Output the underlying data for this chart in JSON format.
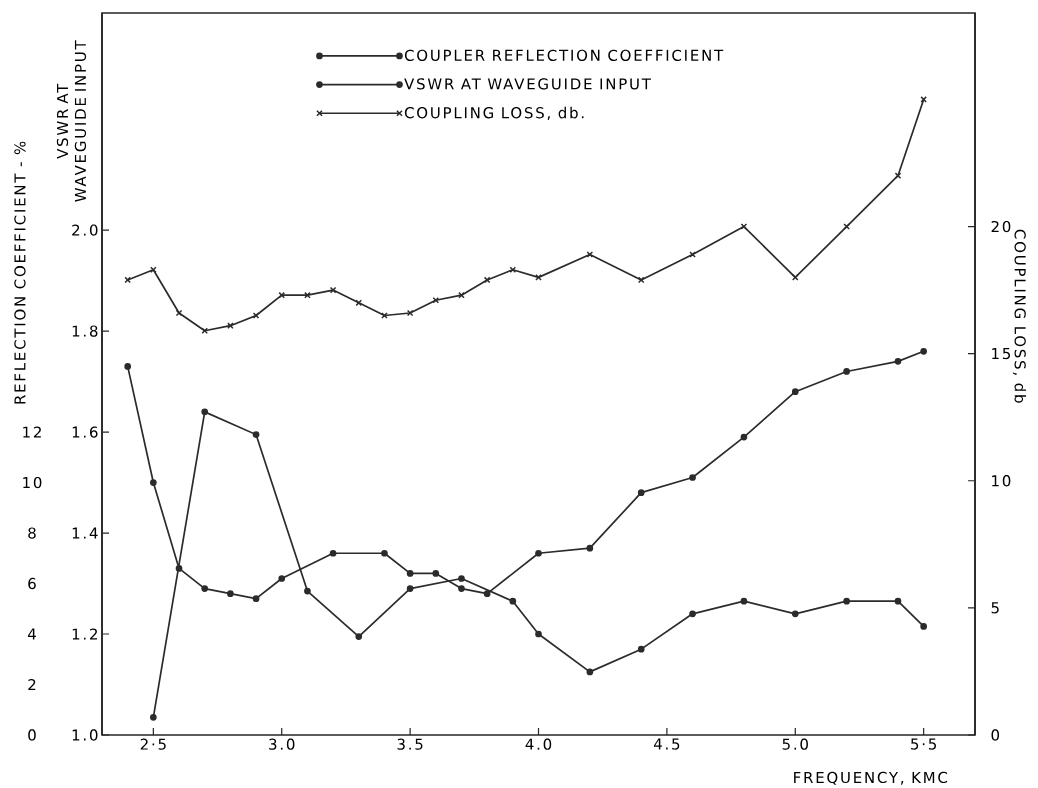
{
  "chart_data": {
    "type": "line",
    "xlabel": "FREQUENCY, KMC",
    "ylabel": "REFLECTION COEFFICIENT - %",
    "y2label": "VSWR AT WAVEGUIDE INPUT",
    "y3label": "COUPLING LOSS, db",
    "xlim": [
      2.3,
      5.7
    ],
    "xticks": [
      {
        "value": 2.5,
        "label": "2·5"
      },
      {
        "value": 3.0,
        "label": "3.0"
      },
      {
        "value": 3.5,
        "label": "3.5"
      },
      {
        "value": 4.0,
        "label": "4.0"
      },
      {
        "value": 4.5,
        "label": "4.5"
      },
      {
        "value": 5.0,
        "label": "5.0"
      },
      {
        "value": 5.5,
        "label": "5·5"
      }
    ],
    "ylim": [
      0,
      28.6
    ],
    "yticks": [
      0,
      2,
      4,
      6,
      8,
      10,
      12
    ],
    "y2lim": [
      1.0,
      2.43
    ],
    "y2ticks": [
      {
        "value": 1.0,
        "label": "1.0"
      },
      {
        "value": 1.2,
        "label": "1.2"
      },
      {
        "value": 1.4,
        "label": "1.4"
      },
      {
        "value": 1.6,
        "label": "1.6"
      },
      {
        "value": 1.8,
        "label": "1.8"
      },
      {
        "value": 2.0,
        "label": "2.0"
      }
    ],
    "y3lim": [
      0,
      28.4
    ],
    "y3ticks": [
      0,
      5,
      10,
      15,
      20
    ],
    "legend": "top",
    "series": [
      {
        "name": "COUPLER REFLECTION COEFFICIENT",
        "color": "#2b2b2b",
        "axis": "y",
        "marker": "circle",
        "x": [
          2.5,
          2.7,
          2.9,
          3.1,
          3.3,
          3.5,
          3.7,
          3.9,
          4.0,
          4.2,
          4.4,
          4.6,
          4.8,
          5.0,
          5.2,
          5.4,
          5.5
        ],
        "values": [
          0.7,
          12.8,
          11.9,
          5.7,
          3.9,
          5.8,
          6.2,
          5.3,
          4.0,
          2.5,
          3.4,
          4.8,
          5.3,
          4.8,
          5.3,
          5.3,
          4.3
        ]
      },
      {
        "name": "VSWR AT WAVEGUIDE INPUT",
        "color": "#2b2b2b",
        "axis": "y2",
        "marker": "circle",
        "x": [
          2.4,
          2.5,
          2.6,
          2.7,
          2.8,
          2.9,
          3.0,
          3.2,
          3.4,
          3.5,
          3.6,
          3.7,
          3.8,
          4.0,
          4.2,
          4.4,
          4.6,
          4.8,
          5.0,
          5.2,
          5.4,
          5.5
        ],
        "values": [
          1.73,
          1.5,
          1.33,
          1.29,
          1.28,
          1.27,
          1.31,
          1.36,
          1.36,
          1.32,
          1.32,
          1.29,
          1.28,
          1.36,
          1.37,
          1.48,
          1.51,
          1.59,
          1.68,
          1.72,
          1.74,
          1.76
        ]
      },
      {
        "name": "COUPLING LOSS, db.",
        "color": "#2b2b2b",
        "axis": "y3",
        "marker": "cross",
        "x": [
          2.4,
          2.5,
          2.6,
          2.7,
          2.8,
          2.9,
          3.0,
          3.1,
          3.2,
          3.3,
          3.4,
          3.5,
          3.6,
          3.7,
          3.8,
          3.9,
          4.0,
          4.2,
          4.4,
          4.6,
          4.8,
          5.0,
          5.2,
          5.4,
          5.5
        ],
        "values": [
          17.9,
          18.3,
          16.6,
          15.9,
          16.1,
          16.5,
          17.3,
          17.3,
          17.5,
          17.0,
          16.5,
          16.6,
          17.1,
          17.3,
          17.9,
          18.3,
          18.0,
          18.9,
          17.9,
          18.9,
          20.0,
          18.0,
          20.0,
          22.0,
          25.0
        ]
      }
    ]
  }
}
